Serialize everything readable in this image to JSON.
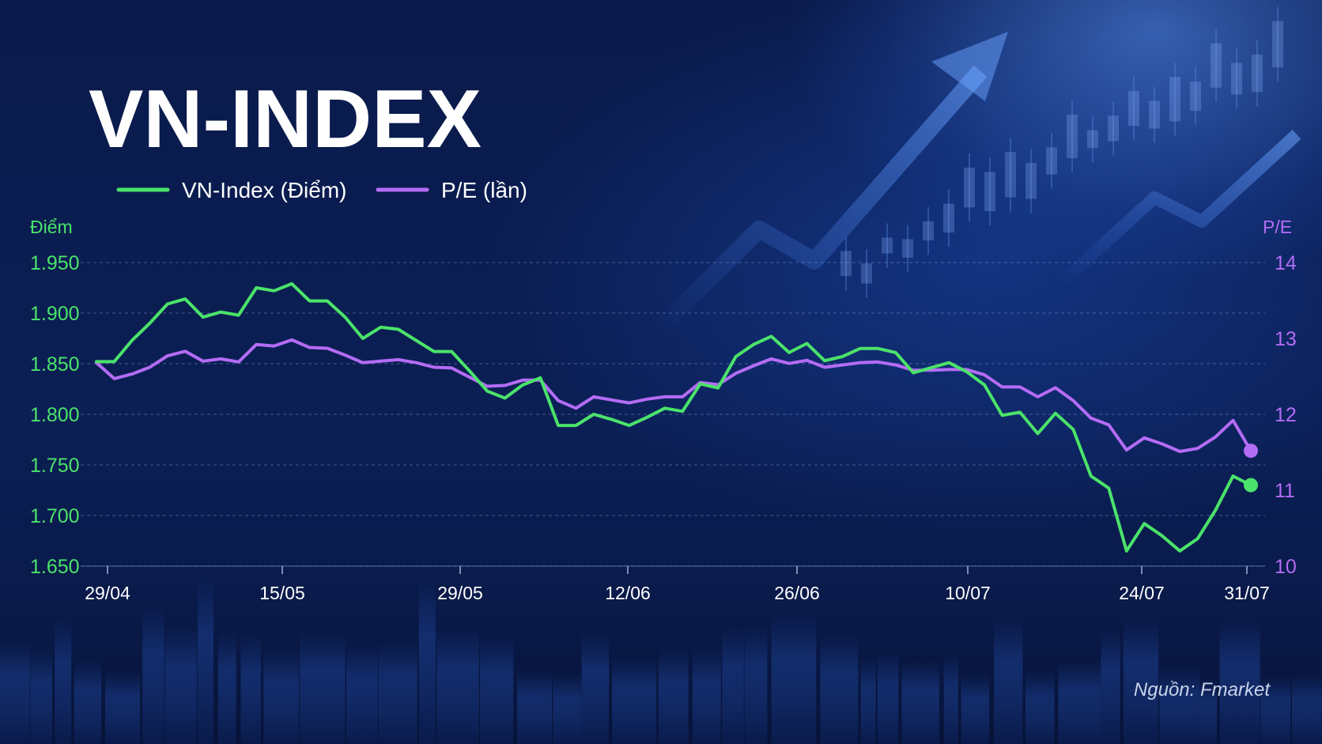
{
  "title": "VN-INDEX",
  "source": "Nguồn: Fmarket",
  "colors": {
    "vnindex": "#4be36a",
    "pe": "#b46cf5",
    "background": "#0b1f55"
  },
  "chart_data": {
    "type": "line",
    "title": "VN-INDEX",
    "ylabel": "Điểm",
    "y2label": "P/E",
    "ylim": [
      1650,
      1950
    ],
    "y2lim": [
      10,
      14
    ],
    "yticks": [
      "1.950",
      "1.900",
      "1.850",
      "1.800",
      "1.750",
      "1.700",
      "1.650"
    ],
    "y2ticks": [
      "14",
      "13",
      "12",
      "11",
      "10"
    ],
    "xticks": [
      "29/04",
      "15/05",
      "29/05",
      "12/06",
      "26/06",
      "10/07",
      "24/07",
      "31/07"
    ],
    "grid": true,
    "legend": "top-left",
    "series": [
      {
        "name": "VN-Index (Điểm)",
        "axis": "left",
        "values": [
          1852,
          1852,
          1873,
          1890,
          1909,
          1914,
          1896,
          1901,
          1898,
          1925,
          1922,
          1929,
          1912,
          1912,
          1896,
          1875,
          1886,
          1884,
          1873,
          1862,
          1862,
          1843,
          1823,
          1816,
          1829,
          1836,
          1789,
          1789,
          1800,
          1795,
          1789,
          1797,
          1806,
          1803,
          1830,
          1826,
          1857,
          1869,
          1877,
          1861,
          1870,
          1853,
          1857,
          1865,
          1865,
          1861,
          1841,
          1846,
          1851,
          1842,
          1829,
          1799,
          1802,
          1781,
          1801,
          1785,
          1739,
          1727,
          1665,
          1692,
          1680,
          1665,
          1677,
          1705,
          1739,
          1730
        ]
      },
      {
        "name": "P/E (lần)",
        "axis": "right",
        "values": [
          12.68,
          12.47,
          12.53,
          12.62,
          12.77,
          12.83,
          12.7,
          12.73,
          12.69,
          12.92,
          12.9,
          12.98,
          12.88,
          12.87,
          12.78,
          12.68,
          12.7,
          12.72,
          12.68,
          12.62,
          12.61,
          12.49,
          12.37,
          12.38,
          12.45,
          12.45,
          12.18,
          12.08,
          12.23,
          12.19,
          12.15,
          12.2,
          12.23,
          12.23,
          12.42,
          12.39,
          12.54,
          12.64,
          12.73,
          12.67,
          12.71,
          12.62,
          12.65,
          12.68,
          12.69,
          12.65,
          12.58,
          12.58,
          12.59,
          12.59,
          12.52,
          12.36,
          12.36,
          12.23,
          12.35,
          12.18,
          11.95,
          11.86,
          11.53,
          11.69,
          11.61,
          11.51,
          11.55,
          11.7,
          11.92,
          11.52
        ]
      }
    ]
  }
}
